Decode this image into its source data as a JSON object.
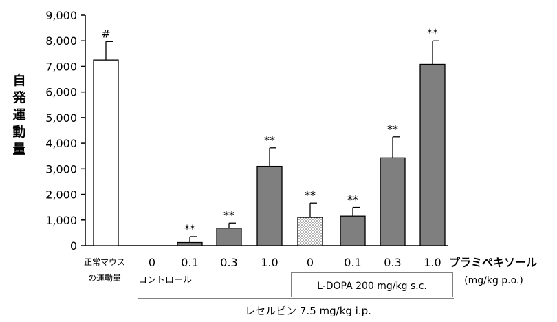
{
  "chart_data": {
    "type": "bar",
    "ylabel": "自発運動量",
    "ylim": [
      0,
      9000
    ],
    "yticks": [
      "0",
      "1,000",
      "2,000",
      "3,000",
      "4,000",
      "5,000",
      "6,000",
      "7,000",
      "8,000",
      "9,000"
    ],
    "ytick_values": [
      0,
      1000,
      2000,
      3000,
      4000,
      5000,
      6000,
      7000,
      8000,
      9000
    ],
    "grid": false,
    "bars": [
      {
        "category": "正常マウスの運動量",
        "value": 7250,
        "error": 720,
        "annotation": "#",
        "style": "white"
      },
      {
        "category": "0",
        "value": 0,
        "error": 0,
        "annotation": "",
        "style": "gray"
      },
      {
        "category": "0.1",
        "value": 120,
        "error": 230,
        "annotation": "**",
        "style": "gray"
      },
      {
        "category": "0.3",
        "value": 680,
        "error": 200,
        "annotation": "**",
        "style": "gray"
      },
      {
        "category": "1.0",
        "value": 3100,
        "error": 720,
        "annotation": "**",
        "style": "gray"
      },
      {
        "category": "0",
        "value": 1100,
        "error": 560,
        "annotation": "**",
        "style": "dotted"
      },
      {
        "category": "0.1",
        "value": 1150,
        "error": 340,
        "annotation": "**",
        "style": "gray"
      },
      {
        "category": "0.3",
        "value": 3430,
        "error": 820,
        "annotation": "**",
        "style": "gray"
      },
      {
        "category": "1.0",
        "value": 7080,
        "error": 920,
        "annotation": "**",
        "style": "gray"
      }
    ],
    "normal_label_line1": "正常マウス",
    "normal_label_line2": "の運動量",
    "pramipexole_label": "プラミペキソール",
    "pramipexole_unit": "(mg/kg p.o.)",
    "control_label": "コントロール",
    "ldopa_label": "L-DOPA 200 mg/kg s.c.",
    "reserpine_label": "レセルピン 7.5 mg/kg i.p.",
    "colors": {
      "gray_bar": "#7f7f7f",
      "white_bar": "#ffffff",
      "dotted_bar": "#d9d9d9",
      "axis": "#000000"
    }
  }
}
